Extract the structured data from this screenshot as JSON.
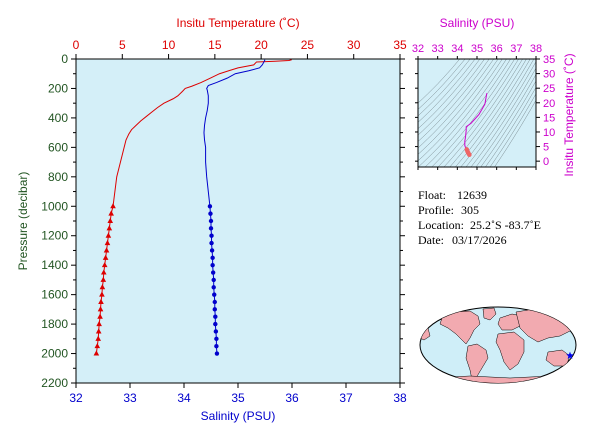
{
  "chart_data": [
    {
      "type": "line",
      "title": "",
      "top_axis": {
        "label": "Insitu Temperature (˚C)",
        "range": [
          0,
          35
        ],
        "ticks": [
          0,
          5,
          10,
          15,
          20,
          25,
          30,
          35
        ],
        "color": "#dd0000"
      },
      "bottom_axis": {
        "label": "Salinity (PSU)",
        "range": [
          32,
          38
        ],
        "ticks": [
          32,
          33,
          34,
          35,
          36,
          37,
          38
        ],
        "color": "#0000cc"
      },
      "y_axis": {
        "label": "Pressure (decibar)",
        "range": [
          0,
          2200
        ],
        "inverted": true,
        "ticks": [
          0,
          200,
          400,
          600,
          800,
          1000,
          1200,
          1400,
          1600,
          1800,
          2000,
          2200
        ],
        "color": "#225522"
      },
      "background": "#d4eff8",
      "series": [
        {
          "quantity": "temperature",
          "color": "#dd0000",
          "marker": "triangle",
          "points": [
            [
              23.3,
              5
            ],
            [
              23.0,
              10
            ],
            [
              21.5,
              15
            ],
            [
              19.5,
              20
            ],
            [
              19.2,
              40
            ],
            [
              17.5,
              60
            ],
            [
              16.5,
              80
            ],
            [
              15.5,
              100
            ],
            [
              14.5,
              130
            ],
            [
              13.5,
              160
            ],
            [
              12.5,
              185
            ],
            [
              11.8,
              200
            ],
            [
              11.5,
              220
            ],
            [
              11.0,
              250
            ],
            [
              10.5,
              270
            ],
            [
              9.5,
              300
            ],
            [
              8.8,
              330
            ],
            [
              8.2,
              360
            ],
            [
              7.6,
              390
            ],
            [
              7.0,
              420
            ],
            [
              6.5,
              450
            ],
            [
              6.0,
              480
            ],
            [
              5.7,
              510
            ],
            [
              5.4,
              550
            ],
            [
              5.2,
              600
            ],
            [
              5.0,
              650
            ],
            [
              4.8,
              700
            ],
            [
              4.6,
              750
            ],
            [
              4.4,
              800
            ],
            [
              4.3,
              850
            ],
            [
              4.2,
              900
            ],
            [
              4.1,
              950
            ],
            [
              4.0,
              1000
            ],
            [
              3.8,
              1050
            ],
            [
              3.7,
              1100
            ],
            [
              3.6,
              1150
            ],
            [
              3.5,
              1200
            ],
            [
              3.4,
              1250
            ],
            [
              3.3,
              1300
            ],
            [
              3.2,
              1350
            ],
            [
              3.1,
              1400
            ],
            [
              3.0,
              1450
            ],
            [
              2.95,
              1500
            ],
            [
              2.85,
              1550
            ],
            [
              2.8,
              1600
            ],
            [
              2.7,
              1650
            ],
            [
              2.65,
              1700
            ],
            [
              2.6,
              1750
            ],
            [
              2.5,
              1800
            ],
            [
              2.45,
              1850
            ],
            [
              2.4,
              1900
            ],
            [
              2.3,
              1950
            ],
            [
              2.2,
              2000
            ]
          ],
          "marker_from_pressure": 1000
        },
        {
          "quantity": "salinity",
          "color": "#0000cc",
          "marker": "circle",
          "points": [
            [
              35.5,
              5
            ],
            [
              35.48,
              20
            ],
            [
              35.45,
              40
            ],
            [
              35.4,
              60
            ],
            [
              35.2,
              80
            ],
            [
              34.95,
              100
            ],
            [
              34.8,
              130
            ],
            [
              34.6,
              160
            ],
            [
              34.45,
              180
            ],
            [
              34.42,
              200
            ],
            [
              34.43,
              210
            ],
            [
              34.45,
              250
            ],
            [
              34.45,
              300
            ],
            [
              34.43,
              350
            ],
            [
              34.4,
              400
            ],
            [
              34.38,
              450
            ],
            [
              34.37,
              500
            ],
            [
              34.38,
              550
            ],
            [
              34.4,
              600
            ],
            [
              34.4,
              700
            ],
            [
              34.42,
              800
            ],
            [
              34.45,
              900
            ],
            [
              34.48,
              1000
            ],
            [
              34.49,
              1050
            ],
            [
              34.5,
              1100
            ],
            [
              34.5,
              1150
            ],
            [
              34.51,
              1200
            ],
            [
              34.51,
              1250
            ],
            [
              34.52,
              1300
            ],
            [
              34.53,
              1350
            ],
            [
              34.53,
              1400
            ],
            [
              34.54,
              1450
            ],
            [
              34.55,
              1500
            ],
            [
              34.55,
              1550
            ],
            [
              34.56,
              1600
            ],
            [
              34.57,
              1650
            ],
            [
              34.57,
              1700
            ],
            [
              34.58,
              1750
            ],
            [
              34.58,
              1800
            ],
            [
              34.59,
              1850
            ],
            [
              34.6,
              1900
            ],
            [
              34.6,
              1950
            ],
            [
              34.61,
              2000
            ]
          ],
          "marker_from_pressure": 1000
        }
      ]
    },
    {
      "type": "scatter",
      "title": "",
      "top_axis": {
        "label": "Salinity (PSU)",
        "range": [
          32,
          38
        ],
        "ticks": [
          32,
          33,
          34,
          35,
          36,
          37,
          38
        ],
        "color": "#cc00cc"
      },
      "right_axis": {
        "label": "Insitu Temperature (˚C)",
        "range": [
          -2,
          35
        ],
        "ticks": [
          0,
          5,
          10,
          15,
          20,
          25,
          30,
          35
        ],
        "color": "#cc00cc"
      },
      "background": "#d4eff8",
      "density_contours": true,
      "series": [
        {
          "color": "#cc00cc",
          "points": [
            [
              35.5,
              23.3
            ],
            [
              35.4,
              19.5
            ],
            [
              35.1,
              16.0
            ],
            [
              34.7,
              13.0
            ],
            [
              34.45,
              11.8
            ],
            [
              34.45,
              10.5
            ],
            [
              34.42,
              8.5
            ],
            [
              34.38,
              6.8
            ],
            [
              34.38,
              5.4
            ],
            [
              34.42,
              4.6
            ],
            [
              34.48,
              4.0
            ],
            [
              34.52,
              3.3
            ],
            [
              34.56,
              2.8
            ],
            [
              34.61,
              2.2
            ]
          ]
        }
      ]
    }
  ],
  "info": {
    "float_label": "Float:",
    "float_value": "12639",
    "profile_label": "Profile:",
    "profile_value": "305",
    "location_label": "Location:",
    "location_value": "25.2˚S  -83.7˚E",
    "date_label": "Date:",
    "date_value": "03/17/2026"
  },
  "map": {
    "ocean_color": "#cfeef8",
    "land_color": "#f2aab0",
    "marker": "star",
    "marker_color": "#0000ee",
    "marker_lat": -25.2,
    "marker_lon": -83.7
  }
}
